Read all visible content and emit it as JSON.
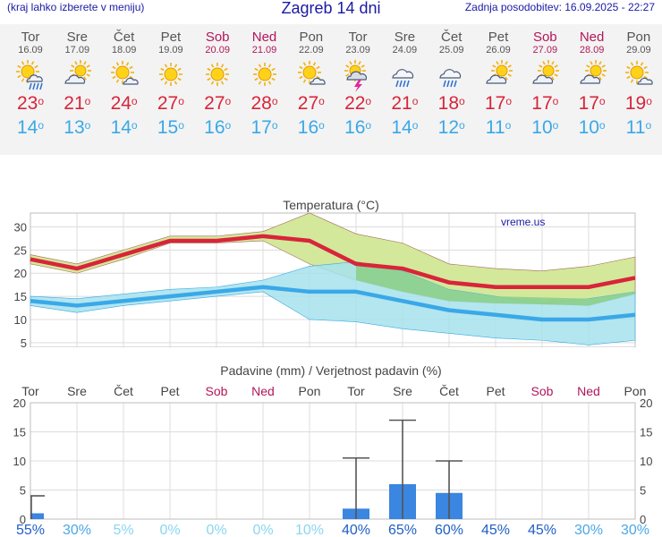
{
  "header": {
    "menu_hint": "(kraj lahko izberete v meniju)",
    "title": "Zagreb 14 dni",
    "updated": "Zadnja posodobitev: 16.09.2025 - 22:27"
  },
  "days": [
    {
      "name": "Tor",
      "date": "16.09",
      "icon": "sun-cloud-rain-icon",
      "max": "23",
      "min": "14",
      "weekend": false
    },
    {
      "name": "Sre",
      "date": "17.09",
      "icon": "sun-cloud-icon",
      "max": "21",
      "min": "13",
      "weekend": false
    },
    {
      "name": "Čet",
      "date": "18.09",
      "icon": "sun-small-cloud-icon",
      "max": "24",
      "min": "14",
      "weekend": false
    },
    {
      "name": "Pet",
      "date": "19.09",
      "icon": "sun-icon",
      "max": "27",
      "min": "15",
      "weekend": false
    },
    {
      "name": "Sob",
      "date": "20.09",
      "icon": "sun-icon",
      "max": "27",
      "min": "16",
      "weekend": true
    },
    {
      "name": "Ned",
      "date": "21.09",
      "icon": "sun-icon",
      "max": "28",
      "min": "17",
      "weekend": true
    },
    {
      "name": "Pon",
      "date": "22.09",
      "icon": "sun-small-cloud-icon",
      "max": "27",
      "min": "16",
      "weekend": false
    },
    {
      "name": "Tor",
      "date": "23.09",
      "icon": "thunderstorm-icon",
      "max": "22",
      "min": "16",
      "weekend": false
    },
    {
      "name": "Sre",
      "date": "24.09",
      "icon": "cloud-rain-icon",
      "max": "21",
      "min": "14",
      "weekend": false
    },
    {
      "name": "Čet",
      "date": "25.09",
      "icon": "cloud-rain-icon",
      "max": "18",
      "min": "12",
      "weekend": false
    },
    {
      "name": "Pet",
      "date": "26.09",
      "icon": "sun-cloud-icon",
      "max": "17",
      "min": "11",
      "weekend": false
    },
    {
      "name": "Sob",
      "date": "27.09",
      "icon": "sun-cloud-icon",
      "max": "17",
      "min": "10",
      "weekend": true
    },
    {
      "name": "Ned",
      "date": "28.09",
      "icon": "sun-cloud-icon",
      "max": "17",
      "min": "10",
      "weekend": true
    },
    {
      "name": "Pon",
      "date": "29.09",
      "icon": "sun-small-cloud-icon",
      "max": "19",
      "min": "11",
      "weekend": false
    }
  ],
  "degree_symbol": "o",
  "chart_data": [
    {
      "type": "line",
      "title": "Temperatura (°C)",
      "watermark": "vreme.us",
      "x": [
        "16.09",
        "17.09",
        "18.09",
        "19.09",
        "20.09",
        "21.09",
        "22.09",
        "23.09",
        "24.09",
        "25.09",
        "26.09",
        "27.09",
        "28.09",
        "29.09"
      ],
      "ylim": [
        4,
        33
      ],
      "yticks": [
        "5",
        "10",
        "15",
        "20",
        "25",
        "30"
      ],
      "series": [
        {
          "values": [
            23,
            21,
            24,
            27,
            27,
            28,
            27,
            22,
            21,
            18,
            17,
            17,
            17,
            19
          ]
        },
        {
          "values": [
            14,
            13,
            14,
            15,
            16,
            17,
            16,
            16,
            14,
            12,
            11,
            10,
            10,
            11
          ]
        }
      ],
      "max_range_low": [
        22,
        20,
        23,
        26.5,
        26.5,
        27,
        22,
        18.5,
        16,
        14,
        13.5,
        13.5,
        13,
        15.5
      ],
      "max_range_high": [
        24,
        22,
        25,
        28,
        28,
        29,
        33,
        28.5,
        26.5,
        22,
        21,
        20.5,
        21.5,
        23.5
      ],
      "min_range_low": [
        13,
        11.5,
        13,
        14,
        15,
        16,
        10,
        9.5,
        8,
        7,
        6,
        5.5,
        4.5,
        5.5
      ],
      "min_range_high": [
        15,
        14.5,
        15.5,
        16.5,
        17,
        18.5,
        21.5,
        22.5,
        20.5,
        16.5,
        15,
        13.5,
        14.5,
        16
      ],
      "grid": true
    },
    {
      "type": "bar",
      "title": "Padavine (mm) / Verjetnost padavin (%)",
      "categories": [
        "Tor",
        "Sre",
        "Čet",
        "Pet",
        "Sob",
        "Ned",
        "Pon",
        "Tor",
        "Sre",
        "Čet",
        "Pet",
        "Sob",
        "Ned",
        "Pon"
      ],
      "values": [
        1,
        0,
        0,
        0,
        0,
        0,
        0,
        1.8,
        6,
        4.5,
        0,
        0,
        0,
        0
      ],
      "error_max": [
        4,
        0,
        0,
        0,
        0,
        0,
        0,
        10.5,
        17,
        10,
        0,
        0,
        0,
        0
      ],
      "probability": [
        "55%",
        "30%",
        "5%",
        "0%",
        "0%",
        "0%",
        "10%",
        "40%",
        "65%",
        "60%",
        "45%",
        "45%",
        "30%",
        "30%"
      ],
      "ylim": [
        0,
        20
      ],
      "yticks": [
        "0",
        "5",
        "10",
        "15",
        "20"
      ],
      "grid": true
    }
  ],
  "colors": {
    "max": "#d8253a",
    "min": "#3aa8e8",
    "max_band": "#d3e89a",
    "min_band": "#a6e2ec",
    "overlap": "#8ccf8c",
    "bar": "#3a86e0",
    "weekend": "#b2165a",
    "prob_dark": "#1f5fc9",
    "prob_light": "#8ad6f0"
  }
}
